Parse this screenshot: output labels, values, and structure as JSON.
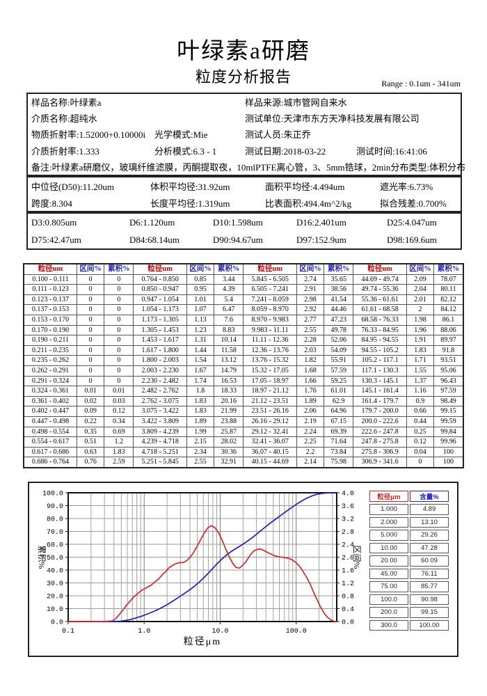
{
  "header": {
    "title": "叶绿素a研磨",
    "subtitle": "粒度分析报告",
    "range_label": "Range : 0.1um - 341um"
  },
  "info_box": {
    "row1": [
      "样品名称:叶绿素a",
      "样品来源:城市管网自来水"
    ],
    "row2": [
      "介质名称:超纯水",
      "测试单位:天津市东方天净科技发展有限公司"
    ],
    "row3": [
      "物质折射率:1.52000+0.10000i",
      "光学模式:Mie",
      "测试人员:朱正乔"
    ],
    "row4": [
      "介质折射率:1.333",
      "分析模式:6.3 - 1",
      "测试日期:2018-03-22",
      "测试时间:16:41:06"
    ],
    "row5": [
      "备注:叶绿素a研磨仪，玻璃纤维滤膜，丙酮提取夜，10mlPTFE离心管，3、5mm锆球，2min",
      "分布类型:体积分布"
    ]
  },
  "stats": {
    "row1": [
      "中位径(D50):11.20um",
      "体积平均径:31.92um",
      "面积平均径:4.494um",
      "遮光率:6.73%"
    ],
    "row2": [
      "跨度:8.304",
      "长度平均径:1.319um",
      "比表面积:494.4m^2/kg",
      "拟合残差:0.700%"
    ]
  },
  "d_values": {
    "row1": [
      "D3:0.805um",
      "D6:1.120um",
      "D10:1.598um",
      "D16:2.401um",
      "D25:4.047um"
    ],
    "row2": [
      "D75:42.47um",
      "D84:68.14um",
      "D90:94.67um",
      "D97:152.9um",
      "D98:169.6um"
    ]
  },
  "table": {
    "headers": [
      "粒径um",
      "区间%",
      "累积%"
    ],
    "groups": [
      [
        [
          "0.100 - 0.111",
          "0",
          "0"
        ],
        [
          "0.111 - 0.123",
          "0",
          "0"
        ],
        [
          "0.123 - 0.137",
          "0",
          "0"
        ],
        [
          "0.137 - 0.153",
          "0",
          "0"
        ],
        [
          "0.153 - 0.170",
          "0",
          "0"
        ],
        [
          "0.170 - 0.190",
          "0",
          "0"
        ],
        [
          "0.190 - 0.211",
          "0",
          "0"
        ],
        [
          "0.211 - 0.235",
          "0",
          "0"
        ],
        [
          "0.235 - 0.262",
          "0",
          "0"
        ],
        [
          "0.262 - 0.291",
          "0",
          "0"
        ],
        [
          "0.291 - 0.324",
          "0",
          "0"
        ],
        [
          "0.324 - 0.361",
          "0.01",
          "0.01"
        ],
        [
          "0.361 - 0.402",
          "0.02",
          "0.03"
        ],
        [
          "0.402 - 0.447",
          "0.09",
          "0.12"
        ],
        [
          "0.447 - 0.498",
          "0.22",
          "0.34"
        ],
        [
          "0.498 - 0.554",
          "0.35",
          "0.69"
        ],
        [
          "0.554 - 0.617",
          "0.51",
          "1.2"
        ],
        [
          "0.617 - 0.686",
          "0.63",
          "1.83"
        ],
        [
          "0.686 - 0.764",
          "0.76",
          "2.59"
        ]
      ],
      [
        [
          "0.764 - 0.850",
          "0.85",
          "3.44"
        ],
        [
          "0.850 - 0.947",
          "0.95",
          "4.39"
        ],
        [
          "0.947 - 1.054",
          "1.01",
          "5.4"
        ],
        [
          "1.054 - 1.173",
          "1.07",
          "6.47"
        ],
        [
          "1.173 - 1.305",
          "1.13",
          "7.6"
        ],
        [
          "1.305 - 1.453",
          "1.23",
          "8.83"
        ],
        [
          "1.453 - 1.617",
          "1.31",
          "10.14"
        ],
        [
          "1.617 - 1.800",
          "1.44",
          "11.58"
        ],
        [
          "1.800 - 2.003",
          "1.54",
          "13.12"
        ],
        [
          "2.003 - 2.230",
          "1.67",
          "14.79"
        ],
        [
          "2.230 - 2.482",
          "1.74",
          "16.53"
        ],
        [
          "2.482 - 2.762",
          "1.8",
          "18.33"
        ],
        [
          "2.762 - 3.075",
          "1.83",
          "20.16"
        ],
        [
          "3.075 - 3.422",
          "1.83",
          "21.99"
        ],
        [
          "3.422 - 3.809",
          "1.89",
          "23.88"
        ],
        [
          "3.809 - 4.239",
          "1.99",
          "25.87"
        ],
        [
          "4.239 - 4.718",
          "2.15",
          "28.02"
        ],
        [
          "4.718 - 5.251",
          "2.34",
          "30.36"
        ],
        [
          "5.251 - 5.845",
          "2.55",
          "32.91"
        ]
      ],
      [
        [
          "5.845 - 6.505",
          "2.74",
          "35.65"
        ],
        [
          "6.505 - 7.241",
          "2.91",
          "38.56"
        ],
        [
          "7.241 - 8.059",
          "2.98",
          "41.54"
        ],
        [
          "8.059 - 8.970",
          "2.92",
          "44.46"
        ],
        [
          "8.970 - 9.983",
          "2.77",
          "47.23"
        ],
        [
          "9.983 - 11.11",
          "2.55",
          "49.78"
        ],
        [
          "11.11 - 12.36",
          "2.28",
          "52.06"
        ],
        [
          "12.36 - 13.76",
          "2.03",
          "54.09"
        ],
        [
          "13.76 - 15.32",
          "1.82",
          "55.91"
        ],
        [
          "15.32 - 17.05",
          "1.68",
          "57.59"
        ],
        [
          "17.05 - 18.97",
          "1.66",
          "59.25"
        ],
        [
          "18.97 - 21.12",
          "1.76",
          "61.01"
        ],
        [
          "21.12 - 23.51",
          "1.89",
          "62.9"
        ],
        [
          "23.51 - 26.16",
          "2.06",
          "64.96"
        ],
        [
          "26.16 - 29.12",
          "2.19",
          "67.15"
        ],
        [
          "29.12 - 32.41",
          "2.24",
          "69.39"
        ],
        [
          "32.41 - 36.07",
          "2.25",
          "71.64"
        ],
        [
          "36.07 - 40.15",
          "2.2",
          "73.84"
        ],
        [
          "40.15 - 44.69",
          "2.14",
          "75.98"
        ]
      ],
      [
        [
          "44.69 - 49.74",
          "2.09",
          "78.07"
        ],
        [
          "49.74 - 55.36",
          "2.04",
          "80.11"
        ],
        [
          "55.36 - 61.61",
          "2.01",
          "82.12"
        ],
        [
          "61.61 - 68.58",
          "2",
          "84.12"
        ],
        [
          "68.58 - 76.33",
          "1.98",
          "86.1"
        ],
        [
          "76.33 - 84.95",
          "1.96",
          "88.06"
        ],
        [
          "84.95 - 94.55",
          "1.91",
          "89.97"
        ],
        [
          "94.55 - 105.2",
          "1.83",
          "91.8"
        ],
        [
          "105.2 - 117.1",
          "1.71",
          "93.51"
        ],
        [
          "117.1 - 130.3",
          "1.55",
          "95.06"
        ],
        [
          "130.3 - 145.1",
          "1.37",
          "96.43"
        ],
        [
          "145.1 - 161.4",
          "1.16",
          "97.59"
        ],
        [
          "161.4 - 179.7",
          "0.9",
          "98.49"
        ],
        [
          "179.7 - 200.0",
          "0.66",
          "99.15"
        ],
        [
          "200.0 - 222.6",
          "0.44",
          "99.59"
        ],
        [
          "222.6 - 247.8",
          "0.25",
          "99.84"
        ],
        [
          "247.8 - 275.8",
          "0.12",
          "99.96"
        ],
        [
          "275.8 - 306.9",
          "0.04",
          "100"
        ],
        [
          "306.9 - 341.6",
          "0",
          "100"
        ]
      ]
    ]
  },
  "side_table": {
    "headers": [
      "粒径μm",
      "含量%"
    ],
    "rows": [
      [
        "1.000",
        "4.89"
      ],
      [
        "2.000",
        "13.10"
      ],
      [
        "5.000",
        "29.26"
      ],
      [
        "10.00",
        "47.28"
      ],
      [
        "20.00",
        "60.09"
      ],
      [
        "45.00",
        "76.11"
      ],
      [
        "75.00",
        "85.77"
      ],
      [
        "100.0",
        "90.98"
      ],
      [
        "200.0",
        "99.15"
      ],
      [
        "300.0",
        "100.00"
      ]
    ]
  },
  "chart_data": {
    "type": "line",
    "x_scale": "log",
    "x_range": [
      0.1,
      341.6
    ],
    "x_ticks": [
      0.1,
      1.0,
      10.0,
      100.0
    ],
    "x_tick_labels": [
      "0.1",
      "1.0",
      "10.0",
      "100.0"
    ],
    "xlabel": "粒径μm",
    "ylabel_left": "累积%",
    "ylabel_right": "区间%",
    "y_left": {
      "min": 0,
      "max": 100,
      "step": 10
    },
    "y_right": {
      "min": 0,
      "max": 4,
      "step": 0.4
    },
    "grid": true,
    "series": [
      {
        "name": "累积%",
        "axis": "left",
        "color": "#1a1acd",
        "x": [
          0.1,
          0.324,
          0.361,
          0.402,
          0.447,
          0.498,
          0.554,
          0.617,
          0.686,
          0.764,
          0.85,
          0.947,
          1.054,
          1.173,
          1.305,
          1.453,
          1.617,
          1.8,
          2.003,
          2.23,
          2.482,
          2.762,
          3.075,
          3.422,
          3.809,
          4.239,
          4.718,
          5.251,
          5.845,
          6.505,
          7.241,
          8.059,
          8.97,
          9.983,
          11.11,
          12.36,
          13.76,
          15.32,
          17.05,
          18.97,
          21.12,
          23.51,
          26.16,
          29.12,
          32.41,
          36.07,
          40.15,
          44.69,
          49.74,
          55.36,
          61.61,
          68.58,
          76.33,
          84.95,
          94.55,
          105.2,
          117.1,
          130.3,
          145.1,
          161.4,
          179.7,
          200,
          222.6,
          247.8,
          275.8,
          306.9,
          341.6
        ],
        "y": [
          0,
          0,
          0.01,
          0.03,
          0.12,
          0.34,
          0.69,
          1.2,
          1.83,
          2.59,
          3.44,
          4.39,
          5.4,
          6.47,
          7.6,
          8.83,
          10.14,
          11.58,
          13.12,
          14.79,
          16.53,
          18.33,
          20.16,
          21.99,
          23.88,
          25.87,
          28.02,
          30.36,
          32.91,
          35.65,
          38.56,
          41.54,
          44.46,
          47.23,
          49.78,
          52.06,
          54.09,
          55.91,
          57.59,
          59.25,
          61.01,
          62.9,
          64.96,
          67.15,
          69.39,
          71.64,
          73.84,
          75.98,
          78.07,
          80.11,
          82.12,
          84.12,
          86.1,
          88.06,
          89.97,
          91.8,
          93.51,
          95.06,
          96.43,
          97.59,
          98.49,
          99.15,
          99.59,
          99.84,
          99.96,
          100,
          100
        ]
      },
      {
        "name": "区间%",
        "axis": "right",
        "color": "#d92626",
        "x": [
          0.1,
          0.307,
          0.342,
          0.381,
          0.424,
          0.472,
          0.525,
          0.585,
          0.651,
          0.724,
          0.806,
          0.897,
          1.0,
          1.112,
          1.237,
          1.377,
          1.533,
          1.706,
          1.899,
          2.114,
          2.352,
          2.618,
          2.914,
          3.244,
          3.61,
          4.018,
          4.472,
          4.977,
          5.54,
          6.166,
          6.863,
          7.639,
          8.502,
          9.463,
          10.53,
          11.72,
          13.04,
          14.52,
          16.16,
          17.98,
          20.02,
          22.28,
          24.8,
          27.6,
          30.72,
          34.19,
          38.05,
          42.36,
          47.15,
          52.47,
          58.4,
          65.0,
          72.35,
          80.52,
          89.62,
          99.73,
          111.0,
          123.5,
          137.5,
          153.0,
          170.3,
          189.6,
          211.0,
          234.9,
          261.4,
          291.0,
          323.8,
          341.6
        ],
        "y": [
          0,
          0,
          0.01,
          0.02,
          0.09,
          0.22,
          0.35,
          0.51,
          0.63,
          0.76,
          0.85,
          0.95,
          1.01,
          1.07,
          1.13,
          1.23,
          1.31,
          1.44,
          1.54,
          1.67,
          1.74,
          1.8,
          1.83,
          1.83,
          1.89,
          1.99,
          2.15,
          2.34,
          2.55,
          2.74,
          2.91,
          2.98,
          2.92,
          2.77,
          2.55,
          2.28,
          2.03,
          1.82,
          1.68,
          1.66,
          1.76,
          1.89,
          2.06,
          2.19,
          2.24,
          2.25,
          2.2,
          2.14,
          2.09,
          2.04,
          2.01,
          2.0,
          1.98,
          1.96,
          1.91,
          1.83,
          1.71,
          1.55,
          1.37,
          1.16,
          0.9,
          0.66,
          0.44,
          0.25,
          0.12,
          0.04,
          0,
          0
        ]
      }
    ]
  }
}
